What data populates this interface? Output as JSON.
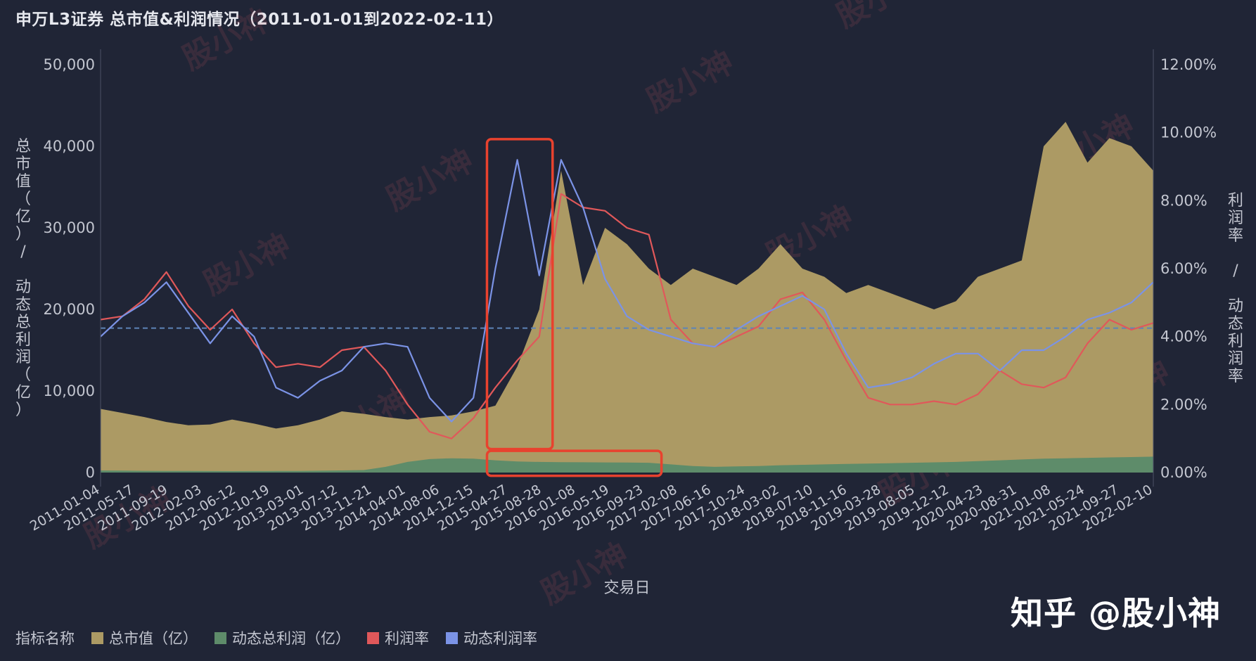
{
  "title": "申万L3证券 总市值&利润情况（2011-01-01到2022-02-11）",
  "watermark_text": "知乎 @股小神",
  "bg_watermark_text": "股小神",
  "colors": {
    "background": "#202536",
    "market_cap": "#ac9a64",
    "profit": "#5e8c6a",
    "profit_rate": "#e0585a",
    "dyn_profit_rate": "#7b93e6",
    "highlight": "#e8422e",
    "ref_line": "#5d84b8"
  },
  "legend": {
    "label": "指标名称",
    "items": [
      {
        "name": "总市值（亿）",
        "color": "#ac9a64"
      },
      {
        "name": "动态总利润（亿）",
        "color": "#5e8c6a"
      },
      {
        "name": "利润率",
        "color": "#e0585a"
      },
      {
        "name": "动态利润率",
        "color": "#7b93e6"
      }
    ]
  },
  "chart_data": {
    "type": "area",
    "title": "申万L3证券 总市值&利润情况（2011-01-01到2022-02-11）",
    "xlabel": "交易日",
    "ylabel_left": "总市值（亿）/ 动态总利润（亿）",
    "ylabel_right": "利润率 / 动态利润率",
    "y_left_range": [
      0,
      50000
    ],
    "y_right_range": [
      0,
      0.12
    ],
    "y_left_ticks": [
      "0",
      "10,000",
      "20,000",
      "30,000",
      "40,000",
      "50,000"
    ],
    "y_right_ticks": [
      "0.00%",
      "2.00%",
      "4.00%",
      "6.00%",
      "8.00%",
      "10.00%",
      "12.00%"
    ],
    "x_ticks": [
      "2011-01-04",
      "2011-05-17",
      "2011-09-19",
      "2012-02-03",
      "2012-06-12",
      "2012-10-19",
      "2013-03-01",
      "2013-07-12",
      "2013-11-21",
      "2014-04-01",
      "2014-08-06",
      "2014-12-15",
      "2015-04-27",
      "2015-08-28",
      "2016-01-08",
      "2016-05-19",
      "2016-09-23",
      "2017-02-08",
      "2017-06-16",
      "2017-10-24",
      "2018-03-02",
      "2018-07-10",
      "2018-11-16",
      "2019-03-28",
      "2019-08-05",
      "2019-12-12",
      "2020-04-23",
      "2020-08-31",
      "2021-01-08",
      "2021-05-24",
      "2021-09-27",
      "2022-02-10"
    ],
    "reference_line_right": 0.0425,
    "series": [
      {
        "name": "总市值（亿）",
        "axis": "left",
        "kind": "area",
        "values": [
          7800,
          7300,
          6800,
          6200,
          5800,
          5900,
          6500,
          6000,
          5400,
          5800,
          6500,
          7500,
          7200,
          6800,
          6500,
          6800,
          7000,
          7500,
          8200,
          13000,
          20000,
          37000,
          23000,
          30000,
          28000,
          25000,
          23000,
          25000,
          24000,
          23000,
          25000,
          28000,
          25000,
          24000,
          22000,
          23000,
          22000,
          21000,
          20000,
          21000,
          24000,
          25000,
          26000,
          40000,
          43000,
          38000,
          41000,
          40000,
          37000
        ]
      },
      {
        "name": "动态总利润（亿）",
        "axis": "left",
        "kind": "area",
        "values": [
          250,
          230,
          210,
          200,
          190,
          180,
          170,
          180,
          190,
          200,
          220,
          260,
          300,
          700,
          1300,
          1650,
          1750,
          1700,
          1500,
          1350,
          1300,
          1280,
          1260,
          1240,
          1220,
          1200,
          1000,
          800,
          700,
          750,
          800,
          900,
          950,
          1000,
          1050,
          1100,
          1150,
          1200,
          1250,
          1300,
          1400,
          1500,
          1600,
          1700,
          1750,
          1800,
          1850,
          1900,
          1950
        ]
      },
      {
        "name": "利润率",
        "axis": "right",
        "kind": "line",
        "values": [
          0.045,
          0.046,
          0.051,
          0.059,
          0.049,
          0.042,
          0.048,
          0.038,
          0.031,
          0.032,
          0.031,
          0.036,
          0.037,
          0.03,
          0.02,
          0.012,
          0.01,
          0.016,
          0.025,
          0.033,
          0.04,
          0.082,
          0.078,
          0.077,
          0.072,
          0.07,
          0.045,
          0.038,
          0.037,
          0.04,
          0.043,
          0.051,
          0.053,
          0.045,
          0.033,
          0.022,
          0.02,
          0.02,
          0.021,
          0.02,
          0.023,
          0.03,
          0.026,
          0.025,
          0.028,
          0.038,
          0.045,
          0.042,
          0.044
        ]
      },
      {
        "name": "动态利润率",
        "axis": "right",
        "kind": "line",
        "values": [
          0.04,
          0.046,
          0.05,
          0.056,
          0.047,
          0.038,
          0.046,
          0.04,
          0.025,
          0.022,
          0.027,
          0.03,
          0.037,
          0.038,
          0.037,
          0.022,
          0.015,
          0.022,
          0.06,
          0.092,
          0.058,
          0.092,
          0.078,
          0.057,
          0.046,
          0.042,
          0.04,
          0.038,
          0.037,
          0.042,
          0.046,
          0.049,
          0.052,
          0.048,
          0.035,
          0.025,
          0.026,
          0.028,
          0.032,
          0.035,
          0.035,
          0.03,
          0.036,
          0.036,
          0.04,
          0.045,
          0.047,
          0.05,
          0.056
        ]
      }
    ],
    "highlights": [
      {
        "x_range": [
          "2015-04-27",
          "2015-08-28"
        ],
        "y_right_range": [
          0.01,
          0.095
        ]
      },
      {
        "x_range": [
          "2015-04-27",
          "2016-09-23"
        ],
        "y_left_range": [
          -400,
          2400
        ]
      }
    ],
    "grid": false,
    "legend_position": "bottom-left"
  }
}
